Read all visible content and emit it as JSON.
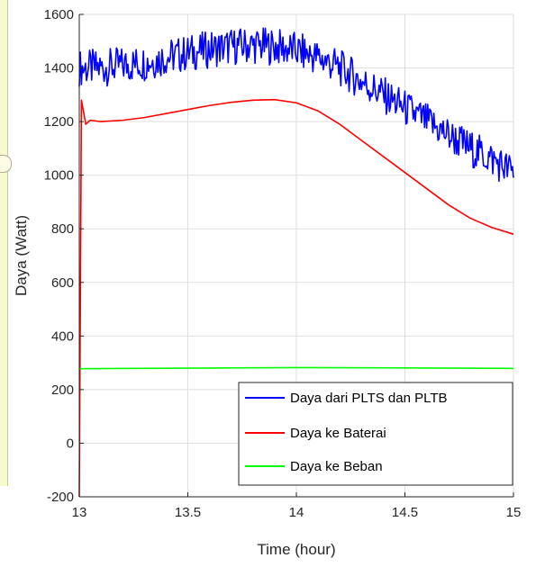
{
  "chart_data": {
    "type": "line",
    "xlabel": "Time (hour)",
    "ylabel": "Daya (Watt)",
    "xlim": [
      13,
      15
    ],
    "ylim": [
      -200,
      1600
    ],
    "xticks": [
      13,
      13.5,
      14,
      14.5,
      15
    ],
    "yticks": [
      -200,
      0,
      200,
      400,
      600,
      800,
      1000,
      1200,
      1400,
      1600
    ],
    "xtick_labels": [
      "13",
      "13.5",
      "14",
      "14.5",
      "15"
    ],
    "ytick_labels": [
      "-200",
      "0",
      "200",
      "400",
      "600",
      "800",
      "1000",
      "1200",
      "1400",
      "1600"
    ],
    "grid": true,
    "legend_position": "bottom-right",
    "series": [
      {
        "name": "Daya dari PLTS dan PLTB",
        "color": "#0000ff",
        "noise_amplitude": 70,
        "x": [
          13.0,
          13.1,
          13.2,
          13.3,
          13.4,
          13.5,
          13.6,
          13.7,
          13.8,
          13.9,
          14.0,
          14.1,
          14.2,
          14.3,
          14.4,
          14.5,
          14.6,
          14.7,
          14.8,
          14.9,
          15.0
        ],
        "y": [
          1400,
          1400,
          1410,
          1420,
          1440,
          1455,
          1470,
          1480,
          1485,
          1480,
          1465,
          1440,
          1400,
          1350,
          1300,
          1250,
          1200,
          1150,
          1100,
          1060,
          1010
        ]
      },
      {
        "name": "Daya ke Baterai",
        "color": "#ff0000",
        "x": [
          13.0,
          13.01,
          13.03,
          13.05,
          13.1,
          13.2,
          13.3,
          13.4,
          13.5,
          13.6,
          13.7,
          13.8,
          13.9,
          14.0,
          14.1,
          14.2,
          14.3,
          14.4,
          14.5,
          14.6,
          14.7,
          14.8,
          14.9,
          15.0
        ],
        "y": [
          -200,
          1280,
          1190,
          1205,
          1200,
          1205,
          1215,
          1230,
          1245,
          1260,
          1272,
          1280,
          1282,
          1270,
          1240,
          1190,
          1130,
          1070,
          1010,
          950,
          890,
          840,
          805,
          780
        ]
      },
      {
        "name": "Daya ke Beban",
        "color": "#00ff00",
        "x": [
          13.0,
          13.5,
          14.0,
          14.5,
          15.0
        ],
        "y": [
          278,
          280,
          282,
          281,
          279
        ]
      }
    ]
  }
}
